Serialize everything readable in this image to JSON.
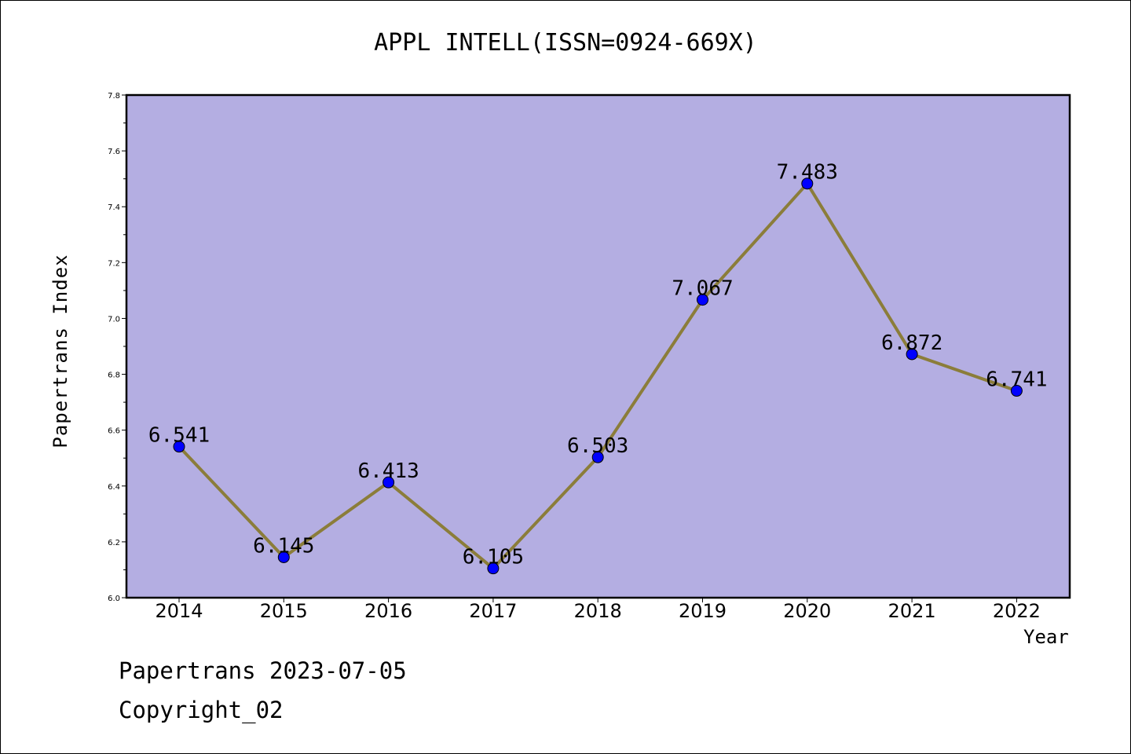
{
  "chart_data": {
    "type": "line",
    "title": "APPL INTELL(ISSN=0924-669X)",
    "xlabel": "Year",
    "ylabel": "Papertrans Index",
    "categories": [
      "2014",
      "2015",
      "2016",
      "2017",
      "2018",
      "2019",
      "2020",
      "2021",
      "2022"
    ],
    "series": [
      {
        "values": [
          6.541,
          6.145,
          6.413,
          6.105,
          6.503,
          7.067,
          7.483,
          6.872,
          6.741
        ],
        "labels": [
          "6.541",
          "6.145",
          "6.413",
          "6.105",
          "6.503",
          "7.067",
          "7.483",
          "6.872",
          "6.741"
        ]
      }
    ],
    "ylim": [
      6.0,
      7.8
    ],
    "yticks": [
      "6.0",
      "6.2",
      "6.4",
      "6.6",
      "6.8",
      "7.0",
      "7.2",
      "7.4",
      "7.6",
      "7.8"
    ],
    "grid": false,
    "legend": false
  },
  "footer": {
    "date_text": "Papertrans 2023-07-05",
    "copyright_text": "Copyright_02"
  },
  "colors": {
    "plot_background": "#b4aee2",
    "line": "#8b7d3a",
    "marker": "#0000ff"
  }
}
